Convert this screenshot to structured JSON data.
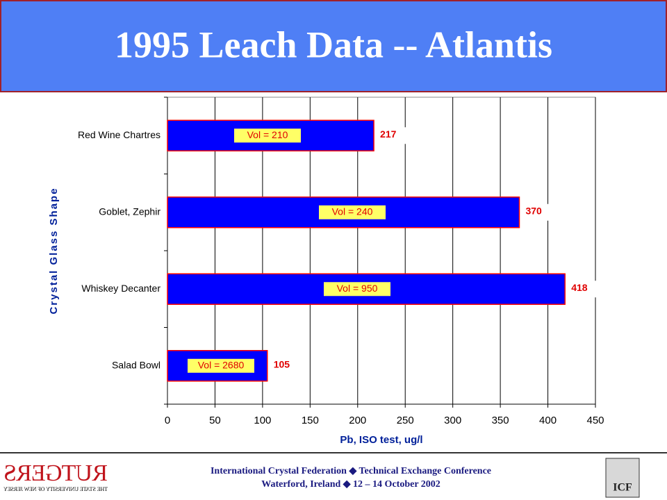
{
  "title": "1995 Leach Data -- Atlantis",
  "chart_data": {
    "type": "bar",
    "orientation": "horizontal",
    "categories": [
      "Red Wine Chartres",
      "Goblet, Zephir",
      "Whiskey Decanter",
      "Salad Bowl"
    ],
    "values": [
      217,
      370,
      418,
      105
    ],
    "annotations": [
      "Vol = 210",
      "Vol = 240",
      "Vol = 950",
      "Vol = 2680"
    ],
    "color": "#0000ff",
    "edge_color": "#ff0000",
    "xlim": [
      0,
      450
    ],
    "xticks": [
      0,
      50,
      100,
      150,
      200,
      250,
      300,
      350,
      400,
      450
    ],
    "xlabel": "Pb, ISO test, ug/l",
    "ylabel": "Crystal Glass Shape",
    "grid": true
  },
  "footer": {
    "line1": "International Crystal Federation ◆ Technical Exchange Conference",
    "line2": "Waterford, Ireland ◆ 12 – 14 October 2002",
    "logo_left": "RUTGERS",
    "logo_left_sub": "THE STATE UNIVERSITY OF NEW JERSEY",
    "logo_right": "ICF"
  }
}
